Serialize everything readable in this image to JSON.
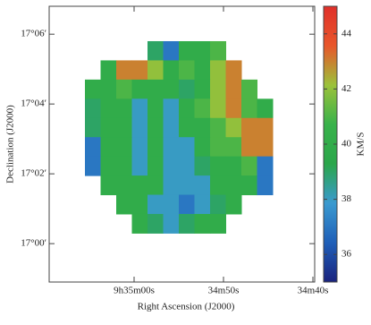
{
  "chart_data": {
    "type": "heatmap",
    "xlabel": "Right Ascension (J2000)",
    "ylabel": "Declination (J2000)",
    "colorbar_label": "KM/S",
    "xlim": [
      69.5,
      39.8
    ],
    "xticks": [
      {
        "value": 60,
        "label": "9h35m00s"
      },
      {
        "value": 50,
        "label": "34m50s"
      },
      {
        "value": 40,
        "label": "34m40s"
      }
    ],
    "ylim": [
      -1.1,
      6.8
    ],
    "yticks": [
      {
        "value": 6,
        "label": "17°06′"
      },
      {
        "value": 4,
        "label": "17°04′"
      },
      {
        "value": 2,
        "label": "17°02′"
      },
      {
        "value": 0,
        "label": "17°00′"
      }
    ],
    "zlim": [
      35,
      45
    ],
    "zticks": [
      36,
      38,
      40,
      42,
      44
    ],
    "colormap": [
      "#1a237e",
      "#1f5fb8",
      "#3a9ad0",
      "#2aa64a",
      "#38b24a",
      "#9cc23a",
      "#e8562a",
      "#e0302a"
    ],
    "x_bins": [
      65.5,
      63.75,
      62,
      60.25,
      58.5,
      56.75,
      55,
      53.25,
      51.5,
      49.75,
      48,
      46.25,
      44.5
    ],
    "y_bins": [
      5.8,
      5.25,
      4.7,
      4.15,
      3.6,
      3.05,
      2.5,
      1.95,
      1.4,
      0.85,
      0.3
    ],
    "z": [
      [
        null,
        null,
        null,
        null,
        39,
        37,
        40,
        40,
        41,
        null,
        null,
        null
      ],
      [
        null,
        40,
        43,
        43,
        42,
        40,
        41,
        40,
        42,
        43,
        null,
        null
      ],
      [
        40,
        40,
        41,
        40,
        40,
        40,
        39,
        40,
        42,
        43,
        41,
        null
      ],
      [
        39,
        40,
        40,
        38,
        40,
        38,
        40,
        41,
        42,
        43,
        41,
        40
      ],
      [
        39,
        40,
        40,
        38,
        40,
        38,
        40,
        40,
        41,
        42,
        43,
        43
      ],
      [
        37,
        40,
        40,
        38,
        40,
        38,
        38,
        40,
        41,
        41,
        43,
        43
      ],
      [
        37,
        40,
        40,
        38,
        40,
        38,
        38,
        39,
        40,
        40,
        41,
        37
      ],
      [
        null,
        40,
        40,
        40,
        40,
        38,
        38,
        38,
        40,
        40,
        40,
        37
      ],
      [
        null,
        null,
        40,
        40,
        38,
        38,
        37,
        38,
        39,
        40,
        null,
        null
      ],
      [
        null,
        null,
        null,
        40,
        39,
        38,
        39,
        40,
        40,
        null,
        null,
        null
      ]
    ]
  }
}
